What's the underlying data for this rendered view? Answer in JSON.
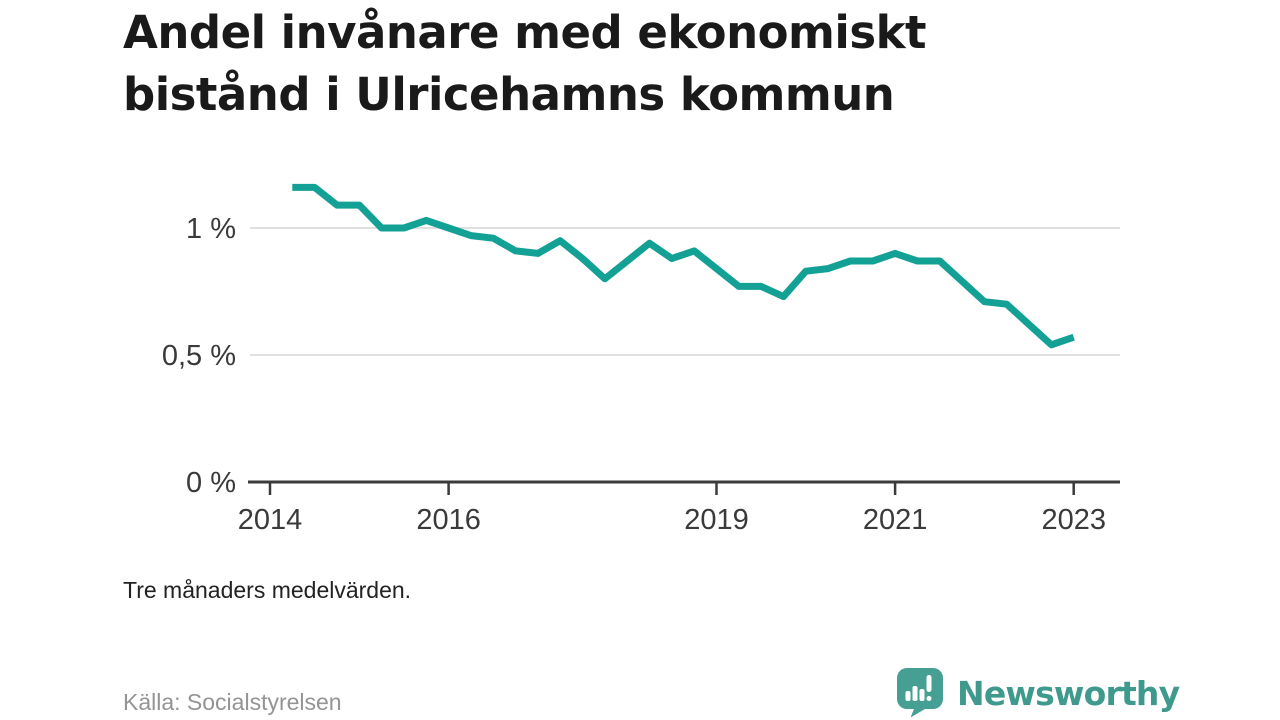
{
  "title": {
    "line1": "Andel invånare med ekonomiskt",
    "line2": "bistånd i Ulricehamns kommun"
  },
  "note": "Tre månaders medelvärden.",
  "source": "Källa: Socialstyrelsen",
  "brand": {
    "name": "Newsworthy",
    "icon": "newsworthy-logo-icon"
  },
  "colors": {
    "line": "#14a195",
    "brand_teal": "#3f9a8d",
    "logo_bubble": "#45a093",
    "grid": "#e0e0e0",
    "axis": "#3a3a3a",
    "tick_label": "#3a3a3a",
    "title_text": "#1a1a1a"
  },
  "chart_data": {
    "type": "line",
    "title": "Andel invånare med ekonomiskt bistånd i Ulricehamns kommun",
    "subtitle": "Tre månaders medelvärden.",
    "x_unit": "year (quarterly points, three-month averages)",
    "y_unit": "percent of inhabitants",
    "xlim": [
      2013.78,
      2023.55
    ],
    "ylim": [
      0,
      1.25
    ],
    "grid": "horizontal gridlines at labeled y-ticks",
    "legend": "none",
    "yticks": [
      {
        "label": "1 %",
        "value": 1.0
      },
      {
        "label": "0,5 %",
        "value": 0.5
      },
      {
        "label": "0 %",
        "value": 0.0
      }
    ],
    "xticks": [
      {
        "label": "2014",
        "value": 2014
      },
      {
        "label": "2016",
        "value": 2016
      },
      {
        "label": "2019",
        "value": 2019
      },
      {
        "label": "2021",
        "value": 2021
      },
      {
        "label": "2023",
        "value": 2023
      }
    ],
    "series": [
      {
        "name": "Andel invånare med ekonomiskt bistånd",
        "x": [
          2014.25,
          2014.5,
          2014.75,
          2015.0,
          2015.25,
          2015.5,
          2015.75,
          2016.0,
          2016.25,
          2016.5,
          2016.75,
          2017.0,
          2017.25,
          2017.5,
          2017.75,
          2018.0,
          2018.25,
          2018.5,
          2018.75,
          2019.0,
          2019.25,
          2019.5,
          2019.75,
          2020.0,
          2020.25,
          2020.5,
          2020.75,
          2021.0,
          2021.25,
          2021.5,
          2021.75,
          2022.0,
          2022.25,
          2022.5,
          2022.75,
          2023.0
        ],
        "values": [
          1.16,
          1.16,
          1.09,
          1.09,
          1.0,
          1.0,
          1.03,
          1.0,
          0.97,
          0.96,
          0.91,
          0.9,
          0.95,
          0.88,
          0.8,
          0.87,
          0.94,
          0.88,
          0.91,
          0.84,
          0.77,
          0.77,
          0.73,
          0.83,
          0.84,
          0.87,
          0.87,
          0.9,
          0.87,
          0.87,
          0.79,
          0.71,
          0.7,
          0.62,
          0.54,
          0.57
        ]
      }
    ]
  }
}
